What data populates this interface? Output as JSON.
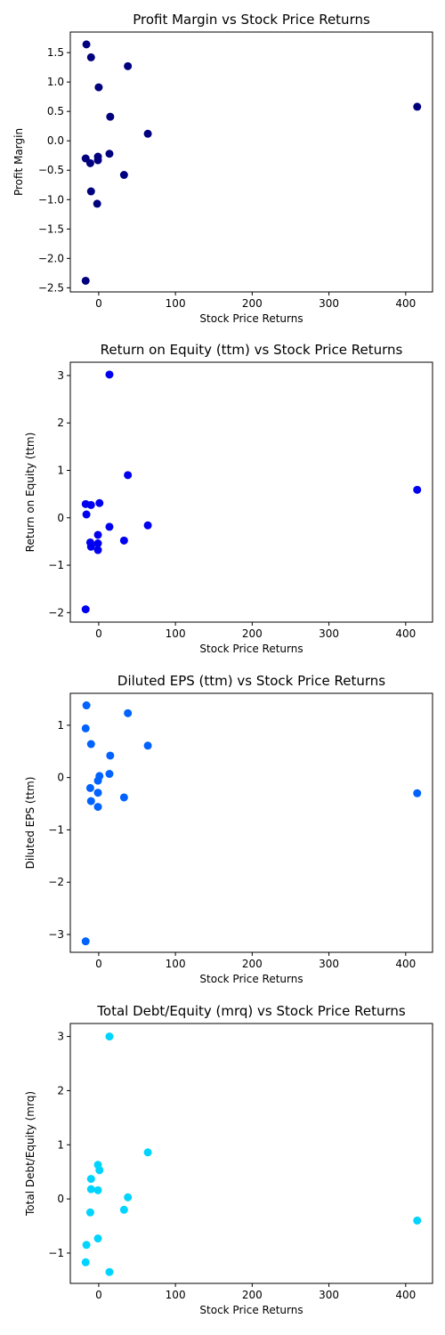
{
  "chart_data": [
    {
      "type": "scatter",
      "title": "Profit Margin vs Stock Price Returns",
      "xlabel": "Stock Price Returns",
      "ylabel": "Profit Margin",
      "xlim": [
        -37,
        435
      ],
      "ylim": [
        -2.57,
        1.85
      ],
      "xticks": [
        0,
        100,
        200,
        300,
        400
      ],
      "xtick_labels": [
        "0",
        "100",
        "200",
        "300",
        "400"
      ],
      "yticks": [
        1.5,
        1.0,
        0.5,
        0.0,
        -0.5,
        -1.0,
        -1.5,
        -2.0,
        -2.5
      ],
      "ytick_labels": [
        "1.5",
        "1.0",
        "0.5",
        "0.0",
        "−0.5",
        "−1.0",
        "−1.5",
        "−2.0",
        "−2.5"
      ],
      "color": "#00007f",
      "grid": false,
      "points": [
        {
          "x": -16,
          "y": 1.64
        },
        {
          "x": -10,
          "y": 1.42
        },
        {
          "x": 38,
          "y": 1.27
        },
        {
          "x": 0,
          "y": 0.91
        },
        {
          "x": 15,
          "y": 0.41
        },
        {
          "x": 415,
          "y": 0.58
        },
        {
          "x": 64,
          "y": 0.12
        },
        {
          "x": 14,
          "y": -0.22
        },
        {
          "x": -1,
          "y": -0.27
        },
        {
          "x": -17,
          "y": -0.3
        },
        {
          "x": -1,
          "y": -0.33
        },
        {
          "x": -11,
          "y": -0.38
        },
        {
          "x": 33,
          "y": -0.58
        },
        {
          "x": -10,
          "y": -0.86
        },
        {
          "x": -2,
          "y": -1.07
        },
        {
          "x": -17,
          "y": -2.38
        }
      ]
    },
    {
      "type": "scatter",
      "title": "Return on Equity (ttm) vs Stock Price Returns",
      "xlabel": "Stock Price Returns",
      "ylabel": "Return on Equity (ttm)",
      "xlim": [
        -37,
        435
      ],
      "ylim": [
        -2.2,
        3.28
      ],
      "xticks": [
        0,
        100,
        200,
        300,
        400
      ],
      "xtick_labels": [
        "0",
        "100",
        "200",
        "300",
        "400"
      ],
      "yticks": [
        3,
        2,
        1,
        0,
        -1,
        -2
      ],
      "ytick_labels": [
        "3",
        "2",
        "1",
        "0",
        "−1",
        "−2"
      ],
      "color": "#0000f0",
      "grid": false,
      "points": [
        {
          "x": 14,
          "y": 3.02
        },
        {
          "x": 38,
          "y": 0.9
        },
        {
          "x": 415,
          "y": 0.59
        },
        {
          "x": -17,
          "y": 0.29
        },
        {
          "x": -10,
          "y": 0.27
        },
        {
          "x": 1,
          "y": 0.31
        },
        {
          "x": -16,
          "y": 0.07
        },
        {
          "x": 14,
          "y": -0.19
        },
        {
          "x": 64,
          "y": -0.16
        },
        {
          "x": -1,
          "y": -0.36
        },
        {
          "x": 33,
          "y": -0.48
        },
        {
          "x": -11,
          "y": -0.52
        },
        {
          "x": -1,
          "y": -0.54
        },
        {
          "x": -10,
          "y": -0.61
        },
        {
          "x": -1,
          "y": -0.68
        },
        {
          "x": -17,
          "y": -1.93
        }
      ]
    },
    {
      "type": "scatter",
      "title": "Diluted EPS (ttm) vs Stock Price Returns",
      "xlabel": "Stock Price Returns",
      "ylabel": "Diluted EPS (ttm)",
      "xlim": [
        -37,
        435
      ],
      "ylim": [
        -3.34,
        1.61
      ],
      "xticks": [
        0,
        100,
        200,
        300,
        400
      ],
      "xtick_labels": [
        "0",
        "100",
        "200",
        "300",
        "400"
      ],
      "yticks": [
        1,
        0,
        -1,
        -2,
        -3
      ],
      "ytick_labels": [
        "1",
        "0",
        "−1",
        "−2",
        "−3"
      ],
      "color": "#0062ff",
      "grid": false,
      "points": [
        {
          "x": -16,
          "y": 1.38
        },
        {
          "x": 38,
          "y": 1.23
        },
        {
          "x": -17,
          "y": 0.94
        },
        {
          "x": -10,
          "y": 0.64
        },
        {
          "x": 64,
          "y": 0.61
        },
        {
          "x": 15,
          "y": 0.42
        },
        {
          "x": 14,
          "y": 0.07
        },
        {
          "x": 1,
          "y": 0.03
        },
        {
          "x": -1,
          "y": -0.06
        },
        {
          "x": -11,
          "y": -0.2
        },
        {
          "x": -1,
          "y": -0.29
        },
        {
          "x": 415,
          "y": -0.3
        },
        {
          "x": 33,
          "y": -0.38
        },
        {
          "x": -10,
          "y": -0.45
        },
        {
          "x": -1,
          "y": -0.56
        },
        {
          "x": -17,
          "y": -3.13
        }
      ]
    },
    {
      "type": "scatter",
      "title": "Total Debt/Equity (mrq) vs Stock Price Returns",
      "xlabel": "Stock Price Returns",
      "ylabel": "Total Debt/Equity (mrq)",
      "xlim": [
        -37,
        435
      ],
      "ylim": [
        -1.56,
        3.24
      ],
      "xticks": [
        0,
        100,
        200,
        300,
        400
      ],
      "xtick_labels": [
        "0",
        "100",
        "200",
        "300",
        "400"
      ],
      "yticks": [
        3,
        2,
        1,
        0,
        -1
      ],
      "ytick_labels": [
        "3",
        "2",
        "1",
        "0",
        "−1"
      ],
      "color": "#00d4ff",
      "grid": false,
      "points": [
        {
          "x": 14,
          "y": 3.0
        },
        {
          "x": 64,
          "y": 0.86
        },
        {
          "x": -1,
          "y": 0.63
        },
        {
          "x": 1,
          "y": 0.53
        },
        {
          "x": -10,
          "y": 0.37
        },
        {
          "x": -10,
          "y": 0.18
        },
        {
          "x": -1,
          "y": 0.16
        },
        {
          "x": 38,
          "y": 0.03
        },
        {
          "x": 33,
          "y": -0.2
        },
        {
          "x": -11,
          "y": -0.25
        },
        {
          "x": 415,
          "y": -0.4
        },
        {
          "x": -1,
          "y": -0.73
        },
        {
          "x": -16,
          "y": -0.85
        },
        {
          "x": -17,
          "y": -1.17
        },
        {
          "x": 14,
          "y": -1.35
        }
      ]
    }
  ]
}
